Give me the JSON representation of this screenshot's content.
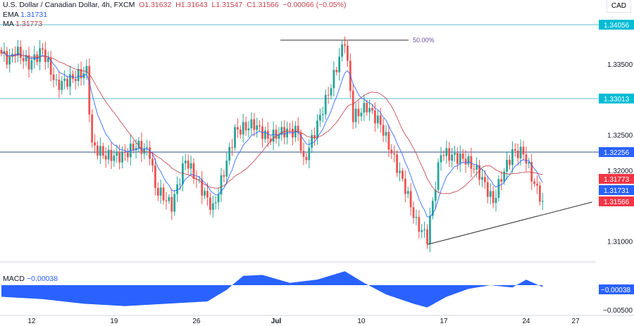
{
  "header": {
    "title": "U.S. Dollar / Canadian Dollar, 4h, FXCM",
    "open": "O1.31632",
    "high": "H1.31643",
    "low": "L1.31547",
    "close": "C1.31566",
    "change": "−0.00066 (−0.05%)",
    "ema_label": "EMA",
    "ema_value": "1.31731",
    "ma_label": "MA",
    "ma_value": "1.31773",
    "currency": "CAD"
  },
  "chart_data": {
    "type": "candlestick",
    "ylim": [
      1.3075,
      1.3415
    ],
    "y_ticks": [
      "1.33500",
      "1.32500",
      "1.32000",
      "1.31000"
    ],
    "y_tick_values": [
      1.335,
      1.325,
      1.32,
      1.31
    ],
    "x_ticks": [
      "12",
      "19",
      "26",
      "Jul",
      "10",
      "17",
      "24",
      "27"
    ],
    "x_tick_bars": [
      11,
      41,
      71,
      100,
      131,
      161,
      191,
      209
    ],
    "close_keypoints": [
      [
        0,
        1.3365
      ],
      [
        3,
        1.3355
      ],
      [
        5,
        1.337
      ],
      [
        10,
        1.335
      ],
      [
        15,
        1.337
      ],
      [
        20,
        1.332
      ],
      [
        26,
        1.333
      ],
      [
        31,
        1.334
      ],
      [
        33,
        1.3235
      ],
      [
        38,
        1.322
      ],
      [
        44,
        1.322
      ],
      [
        49,
        1.3235
      ],
      [
        54,
        1.3225
      ],
      [
        56,
        1.3175
      ],
      [
        62,
        1.315
      ],
      [
        67,
        1.3215
      ],
      [
        72,
        1.318
      ],
      [
        77,
        1.3145
      ],
      [
        79,
        1.317
      ],
      [
        85,
        1.3255
      ],
      [
        92,
        1.3265
      ],
      [
        97,
        1.3245
      ],
      [
        103,
        1.3255
      ],
      [
        108,
        1.3255
      ],
      [
        110,
        1.321
      ],
      [
        115,
        1.3265
      ],
      [
        120,
        1.332
      ],
      [
        125,
        1.3385
      ],
      [
        128,
        1.3275
      ],
      [
        133,
        1.329
      ],
      [
        138,
        1.3265
      ],
      [
        142,
        1.3225
      ],
      [
        147,
        1.3175
      ],
      [
        151,
        1.3125
      ],
      [
        155,
        1.3105
      ],
      [
        158,
        1.318
      ],
      [
        160,
        1.3225
      ],
      [
        164,
        1.322
      ],
      [
        169,
        1.3215
      ],
      [
        174,
        1.3195
      ],
      [
        179,
        1.3155
      ],
      [
        182,
        1.319
      ],
      [
        186,
        1.3225
      ],
      [
        190,
        1.3225
      ],
      [
        194,
        1.318
      ],
      [
        197,
        1.3157
      ]
    ],
    "up_color": "#26a69a",
    "down_color": "#ef5350",
    "levels": [
      {
        "value": 1.34056,
        "label": "1.34056",
        "color": "#5bc0ca",
        "tag": "#00bcd4"
      },
      {
        "value": 1.33013,
        "label": "1.33013",
        "color": "#5bc0ca",
        "tag": "#00bcd4"
      },
      {
        "value": 1.32256,
        "label": "1.32256",
        "color": "#2b4f8a",
        "tag": "#2962ff"
      }
    ],
    "tags": [
      {
        "value": 1.31773,
        "label": "1.31773",
        "color": "#f23645"
      },
      {
        "value": 1.31731,
        "label": "1.31731",
        "color": "#2962ff"
      },
      {
        "value": 1.31566,
        "label": "1.31566",
        "color": "#f23645"
      }
    ],
    "fib": {
      "label": "50.00%",
      "value": 1.3385
    },
    "trendline": [
      [
        155,
        1.3095
      ],
      [
        215,
        1.3155
      ]
    ],
    "macd": {
      "label": "MACD",
      "value": "−0.00038",
      "tick": "−0.00500",
      "keypoints": [
        [
          0,
          -0.0025
        ],
        [
          15,
          -0.003
        ],
        [
          30,
          -0.004
        ],
        [
          45,
          -0.0045
        ],
        [
          60,
          -0.004
        ],
        [
          75,
          -0.0035
        ],
        [
          82,
          -0.001
        ],
        [
          88,
          0.002
        ],
        [
          95,
          0.0022
        ],
        [
          105,
          0.0005
        ],
        [
          115,
          0.0012
        ],
        [
          125,
          0.003
        ],
        [
          132,
          0.0005
        ],
        [
          140,
          -0.002
        ],
        [
          150,
          -0.004
        ],
        [
          155,
          -0.0048
        ],
        [
          162,
          -0.0025
        ],
        [
          170,
          -0.0008
        ],
        [
          178,
          0.0
        ],
        [
          186,
          -0.0005
        ],
        [
          191,
          0.0012
        ],
        [
          197,
          -0.0004
        ]
      ]
    }
  }
}
